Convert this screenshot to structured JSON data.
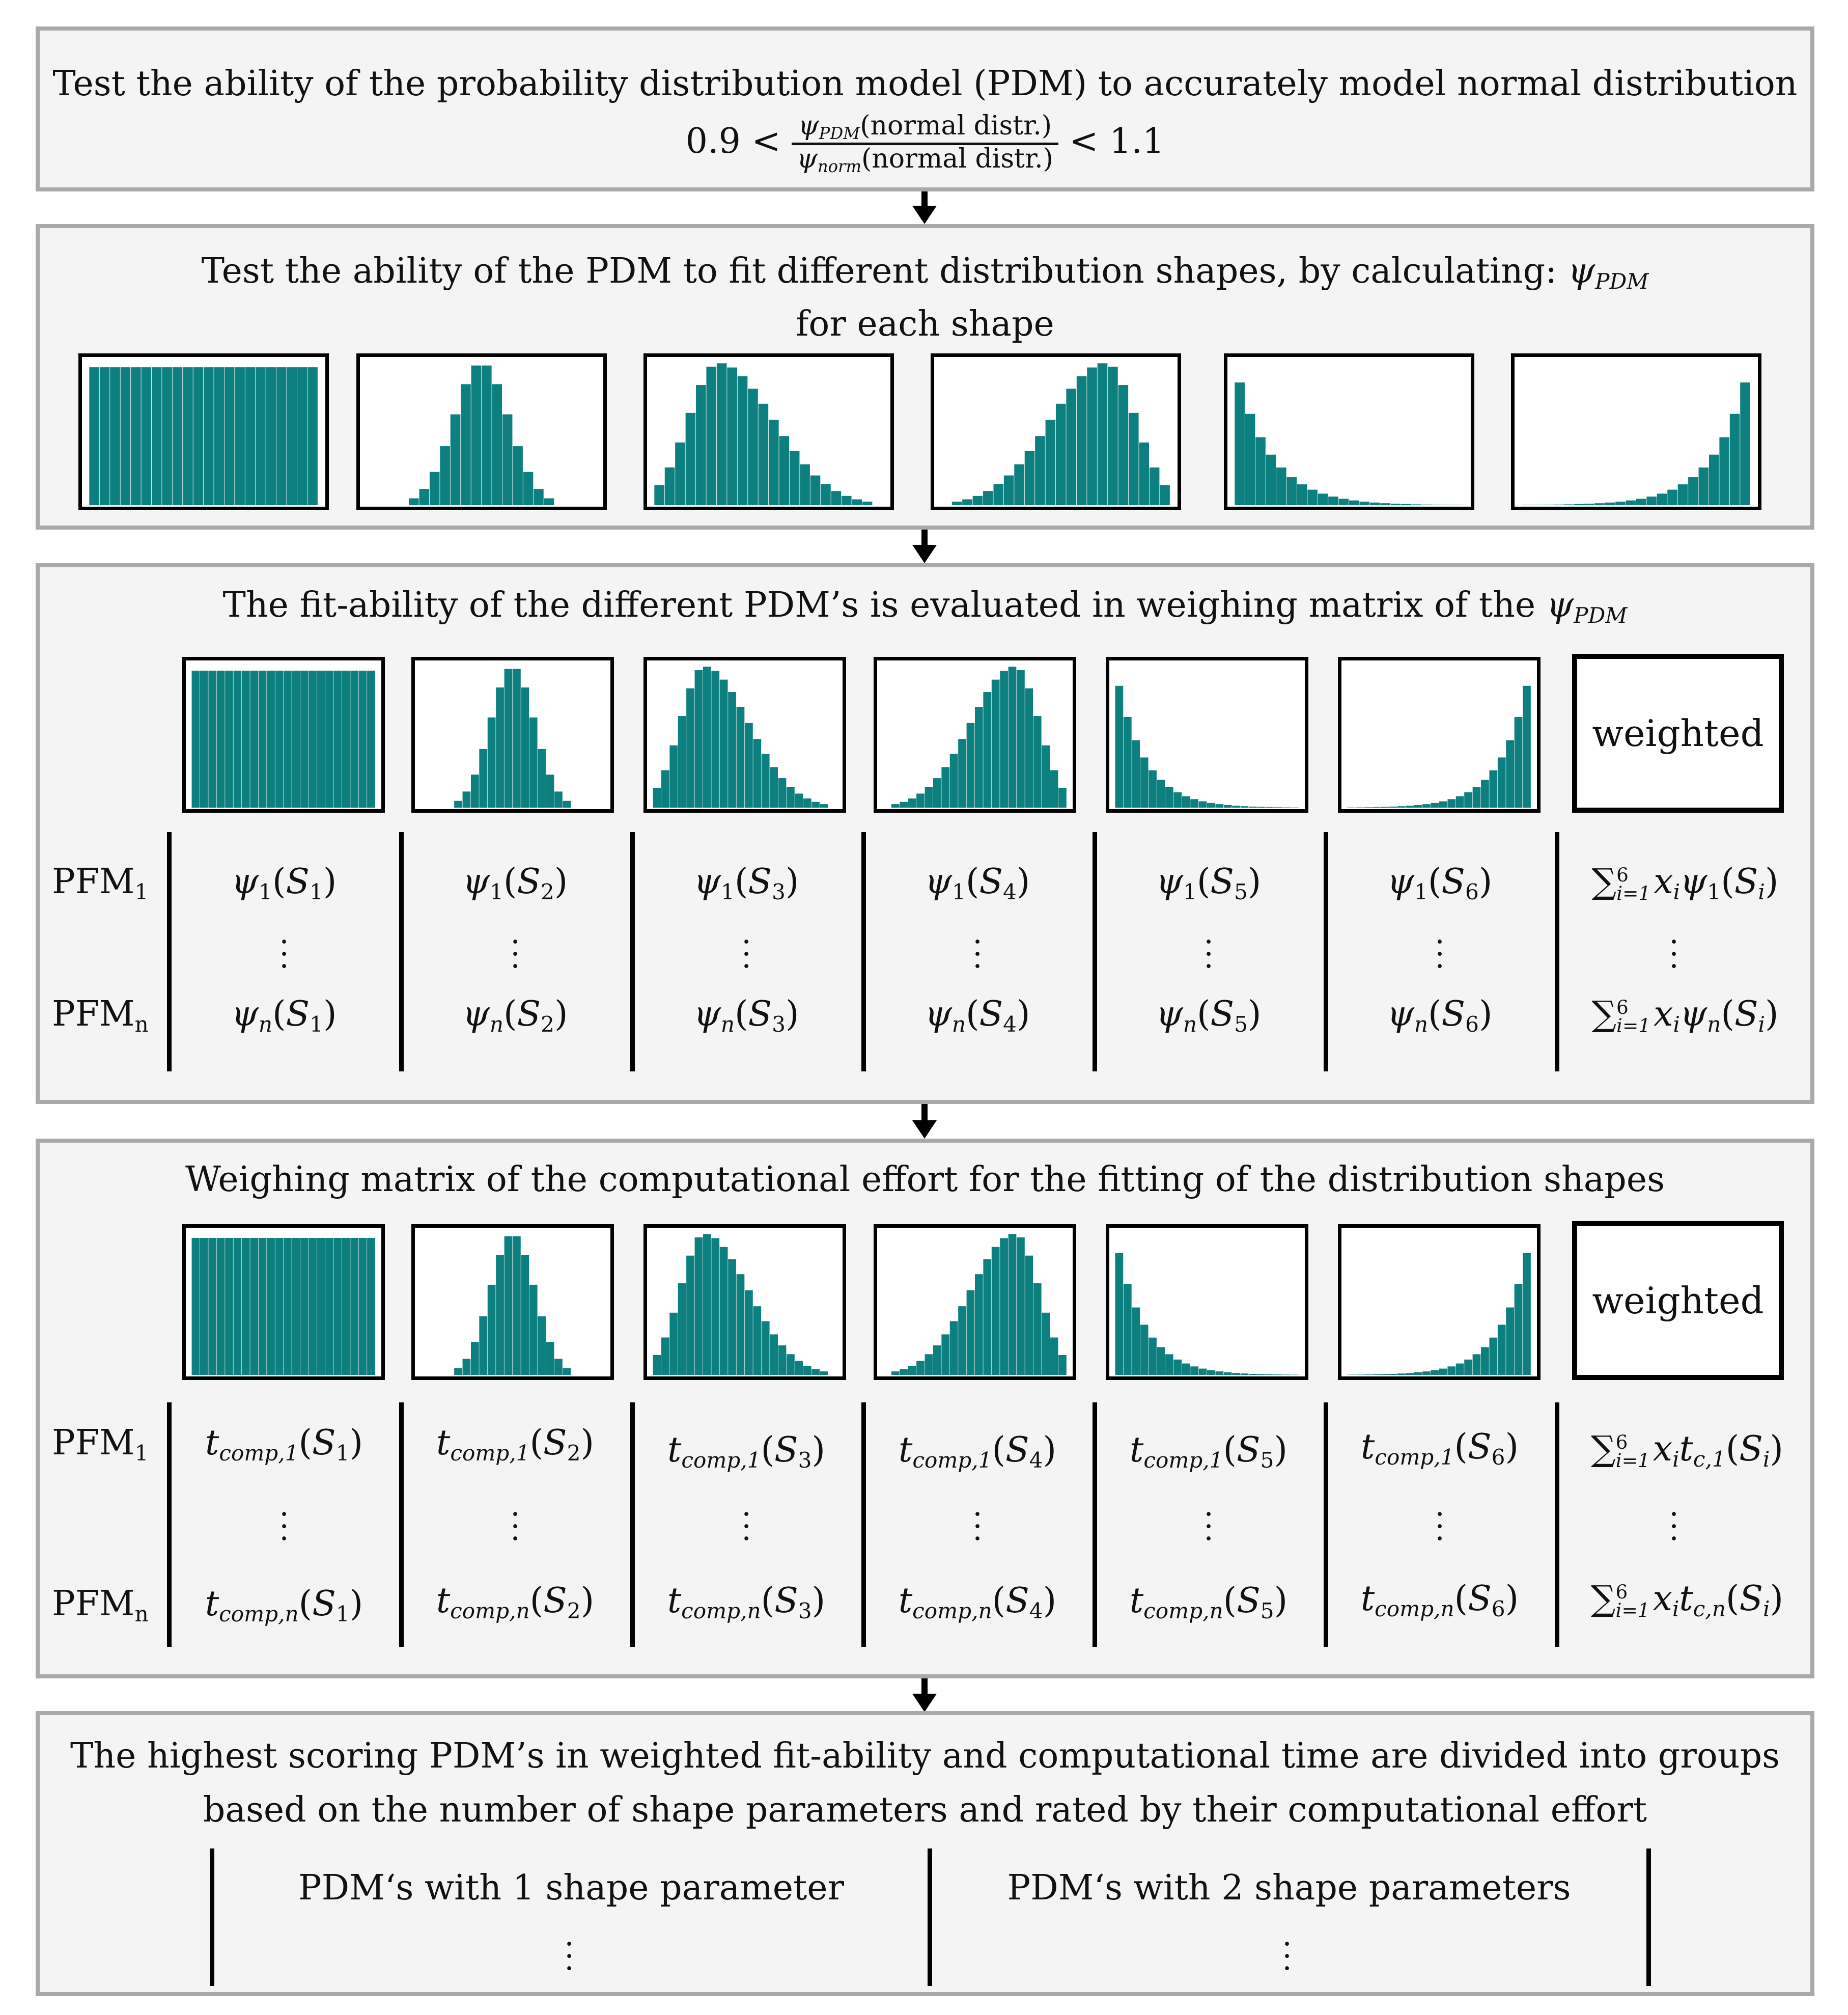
{
  "panel1": {
    "title": "Test the ability of the probability distribution model (PDM) to accurately model normal distribution",
    "inequality": {
      "left": "0.9 <",
      "numerator": {
        "symbol": "ψ",
        "subscript": "PDM",
        "argument": "(normal distr.)"
      },
      "denominator": {
        "symbol": "ψ",
        "subscript": "norm",
        "argument": "(normal distr.)"
      },
      "right": "< 1.1"
    }
  },
  "panel2": {
    "title_line1": "Test the ability of the PDM to fit different distribution shapes, by calculating:",
    "title_symbol": "ψ",
    "title_subscript": "PDM",
    "title_line2": "for each shape"
  },
  "panel3": {
    "title": "The fit-ability of the different PDM’s is evaluated in weighing matrix of the",
    "title_symbol": "ψ",
    "title_subscript": "PDM",
    "weighted_label": "weighted",
    "row_labels": [
      {
        "text": "PFM",
        "sub": "1"
      },
      {
        "text": "PFM",
        "sub": "n"
      }
    ],
    "row1": [
      {
        "sym": "ψ",
        "sub": "1",
        "arg": "S",
        "argsub": "1"
      },
      {
        "sym": "ψ",
        "sub": "1",
        "arg": "S",
        "argsub": "2"
      },
      {
        "sym": "ψ",
        "sub": "1",
        "arg": "S",
        "argsub": "3"
      },
      {
        "sym": "ψ",
        "sub": "1",
        "arg": "S",
        "argsub": "4"
      },
      {
        "sym": "ψ",
        "sub": "1",
        "arg": "S",
        "argsub": "5"
      },
      {
        "sym": "ψ",
        "sub": "1",
        "arg": "S",
        "argsub": "6"
      }
    ],
    "rown": [
      {
        "sym": "ψ",
        "sub": "n",
        "arg": "S",
        "argsub": "1"
      },
      {
        "sym": "ψ",
        "sub": "n",
        "arg": "S",
        "argsub": "2"
      },
      {
        "sym": "ψ",
        "sub": "n",
        "arg": "S",
        "argsub": "3"
      },
      {
        "sym": "ψ",
        "sub": "n",
        "arg": "S",
        "argsub": "4"
      },
      {
        "sym": "ψ",
        "sub": "n",
        "arg": "S",
        "argsub": "5"
      },
      {
        "sym": "ψ",
        "sub": "n",
        "arg": "S",
        "argsub": "6"
      }
    ],
    "sum1": {
      "sup": "6",
      "sub": "i=1",
      "body": "x",
      "bodysub": "i",
      "term": "ψ",
      "termsub": "1",
      "arg": "S",
      "argsub": "i"
    },
    "sumn": {
      "sup": "6",
      "sub": "i=1",
      "body": "x",
      "bodysub": "i",
      "term": "ψ",
      "termsub": "n",
      "arg": "S",
      "argsub": "i"
    }
  },
  "panel4": {
    "title": "Weighing matrix of the computational effort for the fitting of the distribution shapes",
    "weighted_label": "weighted",
    "row_labels": [
      {
        "text": "PFM",
        "sub": "1"
      },
      {
        "text": "PFM",
        "sub": "n"
      }
    ],
    "row1": [
      {
        "sym": "t",
        "sub": "comp,1",
        "arg": "S",
        "argsub": "1"
      },
      {
        "sym": "t",
        "sub": "comp,1",
        "arg": "S",
        "argsub": "2"
      },
      {
        "sym": "t",
        "sub": "comp,1",
        "arg": "S",
        "argsub": "3"
      },
      {
        "sym": "t",
        "sub": "comp,1",
        "arg": "S",
        "argsub": "4"
      },
      {
        "sym": "t",
        "sub": "comp,1",
        "arg": "S",
        "argsub": "5"
      },
      {
        "sym": "t",
        "sub": "comp,1",
        "arg": "S",
        "argsub": "6"
      }
    ],
    "rown": [
      {
        "sym": "t",
        "sub": "comp,n",
        "arg": "S",
        "argsub": "1"
      },
      {
        "sym": "t",
        "sub": "comp,n",
        "arg": "S",
        "argsub": "2"
      },
      {
        "sym": "t",
        "sub": "comp,n",
        "arg": "S",
        "argsub": "3"
      },
      {
        "sym": "t",
        "sub": "comp,n",
        "arg": "S",
        "argsub": "4"
      },
      {
        "sym": "t",
        "sub": "comp,n",
        "arg": "S",
        "argsub": "5"
      },
      {
        "sym": "t",
        "sub": "comp,n",
        "arg": "S",
        "argsub": "6"
      }
    ],
    "sum1": {
      "sup": "6",
      "sub": "i=1",
      "body": "x",
      "bodysub": "i",
      "term": "t",
      "termsub": "c,1",
      "arg": "S",
      "argsub": "i"
    },
    "sumn": {
      "sup": "6",
      "sub": "i=1",
      "body": "x",
      "bodysub": "i",
      "term": "t",
      "termsub": "c,n",
      "arg": "S",
      "argsub": "i"
    }
  },
  "panel5": {
    "title_line1": "The highest scoring PDM’s in weighted fit-ability and computational time are divided into groups",
    "title_line2": "based on the number of shape parameters and rated by their computational effort",
    "group1": "PDM‘s with 1 shape parameter",
    "group2": "PDM‘s with 2 shape parameters"
  },
  "shapes": {
    "bar_color": "#0e7f7f",
    "names": [
      "uniform",
      "normal",
      "right-skewed",
      "left-skewed",
      "exponential-decay",
      "exponential-growth"
    ]
  }
}
